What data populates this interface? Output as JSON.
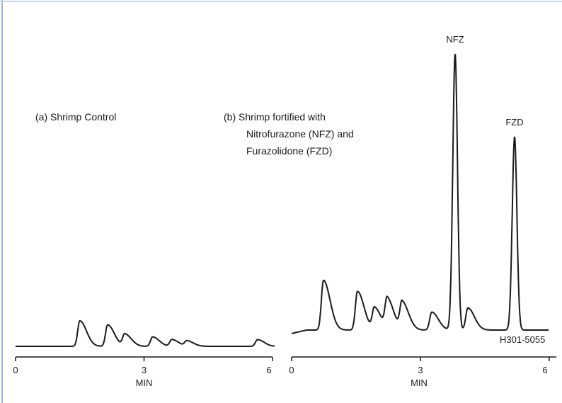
{
  "colors": {
    "trace": "#1a1a1a",
    "frame": "#9fb3c8",
    "background": "#ffffff"
  },
  "chart_data": [
    {
      "type": "line",
      "label": "(a)  Shrimp Control",
      "xlabel": "MIN",
      "xlim": [
        0,
        6
      ],
      "ylim": [
        0,
        100
      ],
      "x_ticks": [
        "0",
        "3",
        "6"
      ],
      "baseline": 0,
      "peaks": [
        {
          "x": 1.5,
          "y": 9.5
        },
        {
          "x": 2.15,
          "y": 8.0
        },
        {
          "x": 2.55,
          "y": 4.5
        },
        {
          "x": 3.2,
          "y": 3.5
        },
        {
          "x": 3.65,
          "y": 2.5
        },
        {
          "x": 4.0,
          "y": 2.0
        },
        {
          "x": 5.65,
          "y": 2.5
        }
      ]
    },
    {
      "type": "line",
      "label_lines": [
        "(b)  Shrimp fortified with",
        "Nitrofurazone (NFZ) and",
        "Furazolidone (FZD)"
      ],
      "xlabel": "MIN",
      "xlim": [
        0,
        6
      ],
      "ylim": [
        0,
        100
      ],
      "x_ticks": [
        "0",
        "3",
        "6"
      ],
      "figure_code": "H301-5055",
      "peaks": [
        {
          "x": 0.75,
          "y": 18.0
        },
        {
          "x": 1.55,
          "y": 14.0
        },
        {
          "x": 1.95,
          "y": 8.0
        },
        {
          "x": 2.25,
          "y": 11.0
        },
        {
          "x": 2.6,
          "y": 10.0
        },
        {
          "x": 3.3,
          "y": 6.5
        },
        {
          "x": 3.85,
          "y": 100,
          "label": "NFZ"
        },
        {
          "x": 4.15,
          "y": 8.0
        },
        {
          "x": 5.25,
          "y": 70,
          "label": "FZD"
        }
      ]
    }
  ]
}
